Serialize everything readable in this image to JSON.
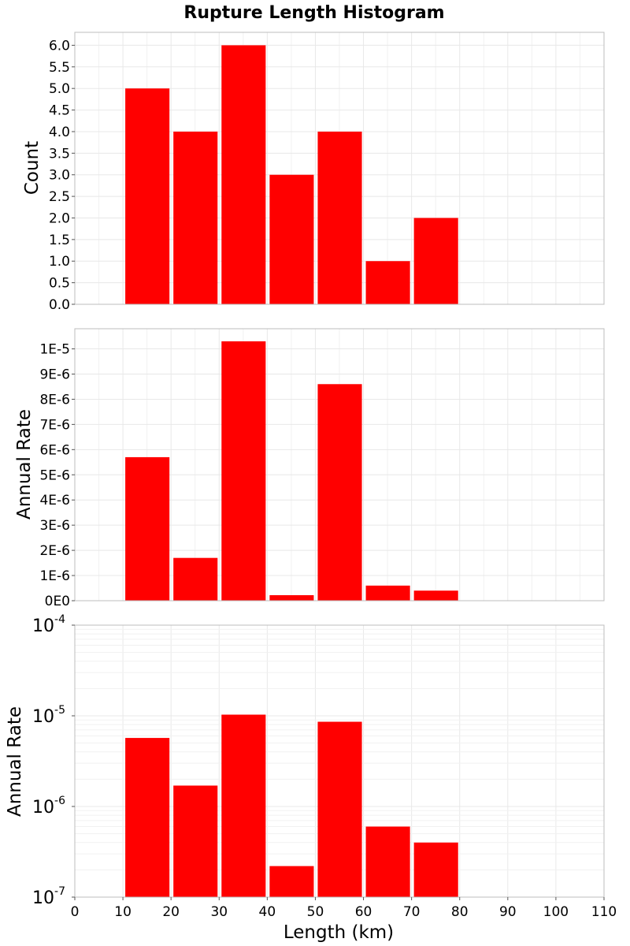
{
  "chart_data": {
    "type": "bar",
    "title": "Rupture Length Histogram",
    "xlabel": "Length (km)",
    "xlim": [
      0,
      110
    ],
    "x_ticks": [
      0,
      10,
      20,
      30,
      40,
      50,
      60,
      70,
      80,
      90,
      100,
      110
    ],
    "bin_width": 10,
    "bar_color": "#ff0000",
    "bins": [
      [
        10,
        20
      ],
      [
        20,
        30
      ],
      [
        30,
        40
      ],
      [
        40,
        50
      ],
      [
        50,
        60
      ],
      [
        60,
        70
      ],
      [
        70,
        80
      ]
    ],
    "panels": [
      {
        "ylabel": "Count",
        "scale": "linear",
        "ylim": [
          0,
          6.3
        ],
        "y_ticks": [
          0,
          0.5,
          1,
          1.5,
          2,
          2.5,
          3,
          3.5,
          4,
          4.5,
          5,
          5.5,
          6
        ],
        "y_tick_labels": [
          "0.0",
          "0.5",
          "1.0",
          "1.5",
          "2.0",
          "2.5",
          "3.0",
          "3.5",
          "4.0",
          "4.5",
          "5.0",
          "5.5",
          "6.0"
        ],
        "values": [
          5,
          4,
          6,
          3,
          4,
          1,
          2
        ]
      },
      {
        "ylabel": "Annual Rate",
        "scale": "linear",
        "ylim": [
          0,
          1.08e-05
        ],
        "y_ticks": [
          0,
          1e-06,
          2e-06,
          3e-06,
          4e-06,
          5e-06,
          6e-06,
          7e-06,
          8e-06,
          9e-06,
          1e-05
        ],
        "y_tick_labels": [
          "0E0",
          "1E-6",
          "2E-6",
          "3E-6",
          "4E-6",
          "5E-6",
          "6E-6",
          "7E-6",
          "8E-6",
          "9E-6",
          "1E-5"
        ],
        "values": [
          5.7e-06,
          1.7e-06,
          1.03e-05,
          2.2e-07,
          8.6e-06,
          6e-07,
          4e-07
        ]
      },
      {
        "ylabel": "Annual Rate",
        "scale": "log",
        "ylim": [
          1e-07,
          0.0001
        ],
        "y_ticks": [
          1e-07,
          1e-06,
          1e-05,
          0.0001
        ],
        "y_tick_bases": [
          "10",
          "10",
          "10",
          "10"
        ],
        "y_tick_exponents": [
          "-7",
          "-6",
          "-5",
          "-4"
        ],
        "values": [
          5.7e-06,
          1.7e-06,
          1.03e-05,
          2.2e-07,
          8.6e-06,
          6e-07,
          4e-07
        ]
      }
    ]
  }
}
